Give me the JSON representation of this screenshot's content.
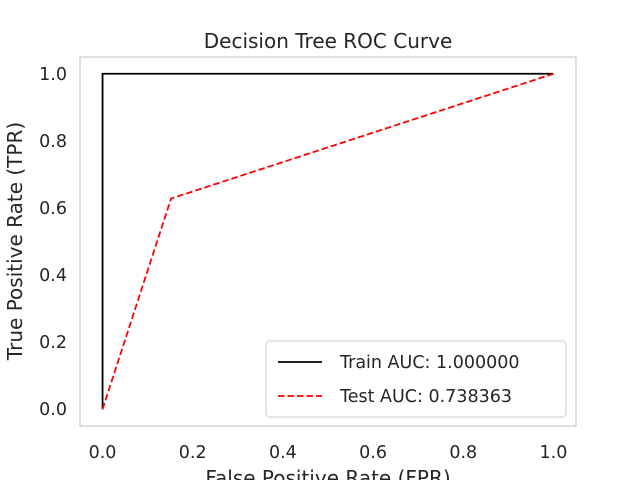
{
  "chart_data": {
    "type": "line",
    "title": "Decision Tree ROC Curve",
    "xlabel": "False Positive Rate (FPR)",
    "ylabel": "True Positive Rate (TPR)",
    "xlim": [
      -0.05,
      1.05
    ],
    "ylim": [
      -0.05,
      1.05
    ],
    "xticks": [
      0.0,
      0.2,
      0.4,
      0.6,
      0.8,
      1.0
    ],
    "yticks": [
      0.0,
      0.2,
      0.4,
      0.6,
      0.8,
      1.0
    ],
    "xtick_labels": [
      "0.0",
      "0.2",
      "0.4",
      "0.6",
      "0.8",
      "1.0"
    ],
    "ytick_labels": [
      "0.0",
      "0.2",
      "0.4",
      "0.6",
      "0.8",
      "1.0"
    ],
    "grid": false,
    "legend_position": "lower-right",
    "series": [
      {
        "name": "Train AUC: 1.000000",
        "x": [
          0.0,
          0.0,
          1.0
        ],
        "y": [
          0.0,
          1.0,
          1.0
        ],
        "color": "#000000",
        "style": "solid"
      },
      {
        "name": "Test AUC: 0.738363",
        "x": [
          0.0,
          0.152,
          1.0
        ],
        "y": [
          0.0,
          0.628,
          1.0
        ],
        "color": "#ff0000",
        "style": "dashed"
      }
    ]
  }
}
